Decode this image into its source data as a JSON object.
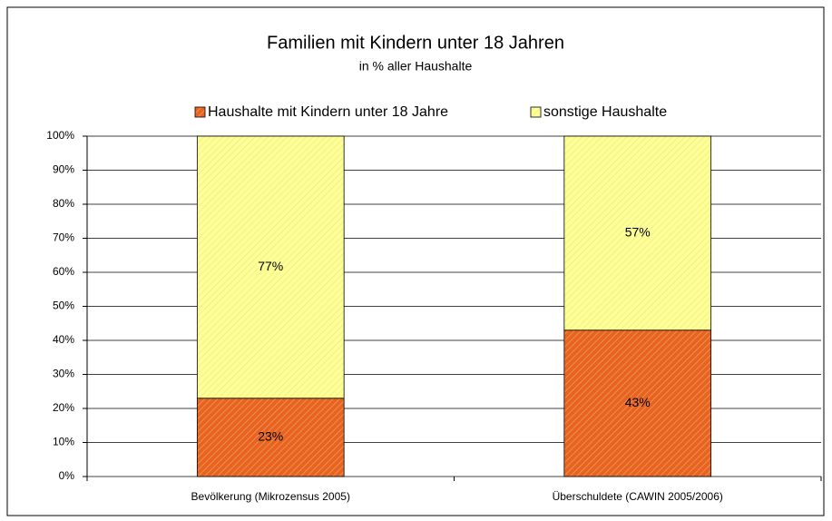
{
  "chart_data": {
    "type": "stacked_bar",
    "title": "Familien mit Kindern unter 18 Jahren",
    "subtitle": "in % aller Haushalte",
    "categories": [
      "Bevölkerung (Mikrozensus 2005)",
      "Überschuldete (CAWIN 2005/2006)"
    ],
    "series": [
      {
        "name": "Haushalte mit Kindern unter 18 Jahre",
        "color": "#e8641e",
        "values": [
          23,
          43
        ],
        "value_labels": [
          "23%",
          "43%"
        ]
      },
      {
        "name": "sonstige Haushalte",
        "color": "#ffff99",
        "values": [
          77,
          57
        ],
        "value_labels": [
          "77%",
          "57%"
        ]
      }
    ],
    "ylim": [
      0,
      100
    ],
    "yticks": [
      {
        "value": 0,
        "label": "0%"
      },
      {
        "value": 10,
        "label": "10%"
      },
      {
        "value": 20,
        "label": "20%"
      },
      {
        "value": 30,
        "label": "30%"
      },
      {
        "value": 40,
        "label": "40%"
      },
      {
        "value": 50,
        "label": "50%"
      },
      {
        "value": 60,
        "label": "60%"
      },
      {
        "value": 70,
        "label": "70%"
      },
      {
        "value": 80,
        "label": "80%"
      },
      {
        "value": 90,
        "label": "90%"
      },
      {
        "value": 100,
        "label": "100%"
      }
    ],
    "grid": true,
    "legend": "top"
  }
}
